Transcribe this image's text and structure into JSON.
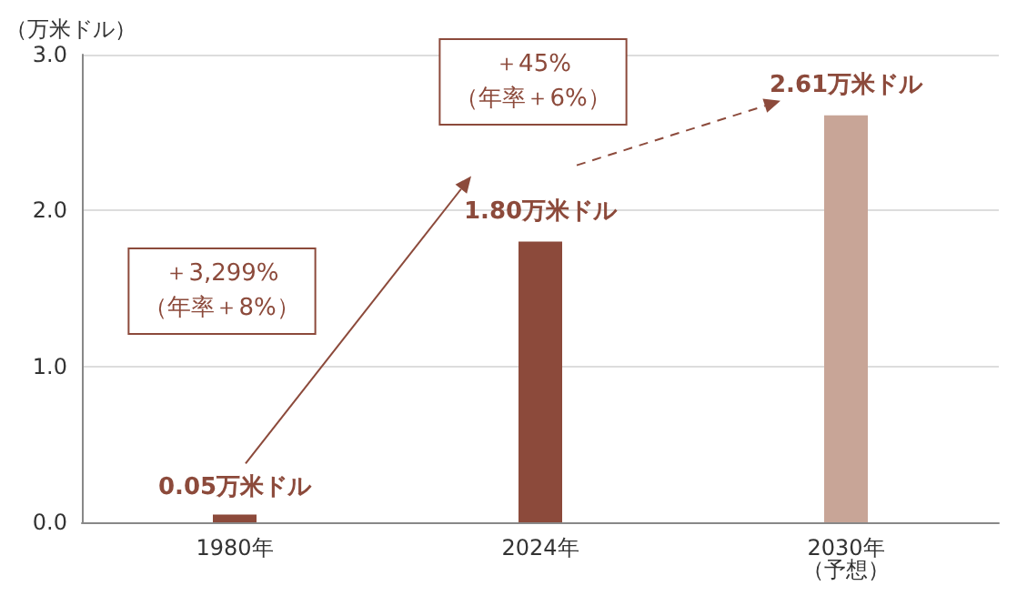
{
  "chart_data": {
    "type": "bar",
    "ylabel": "（万米ドル）",
    "categories": [
      "1980年",
      "2024年",
      "2030年（予想）"
    ],
    "values": [
      0.05,
      1.8,
      2.61
    ],
    "colors": [
      "#8c4a3b",
      "#8c4a3b",
      "#c8a597"
    ],
    "value_labels": [
      "0.05万米ドル",
      "1.80万米ドル",
      "2.61万米ドル"
    ],
    "ylim": [
      0,
      3
    ],
    "yticks": [
      {
        "value": 0,
        "label": "0.0"
      },
      {
        "value": 1,
        "label": "1.0"
      },
      {
        "value": 2,
        "label": "2.0"
      },
      {
        "value": 3,
        "label": "3.0"
      }
    ],
    "grid": "y",
    "annotations": [
      "＋3,299%\n（年率＋8%）",
      "＋45%\n（年率＋6%）"
    ]
  }
}
